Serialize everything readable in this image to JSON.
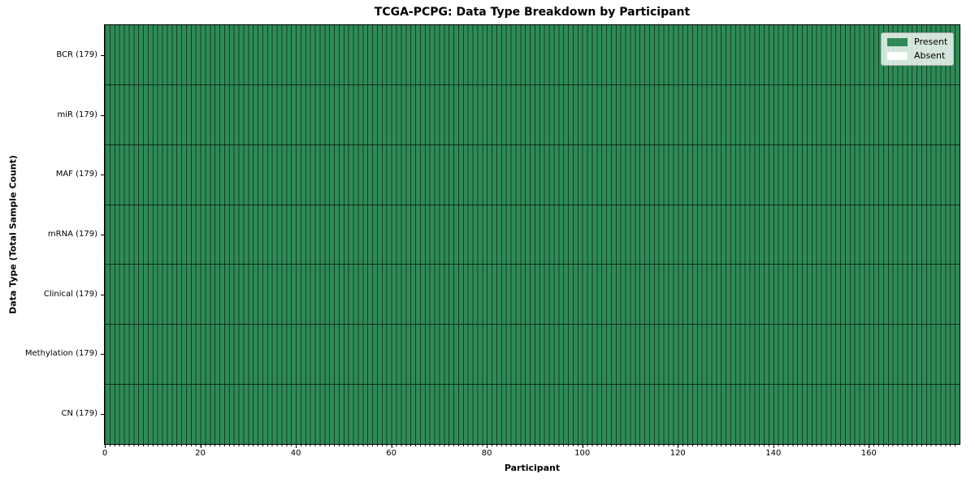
{
  "chart_data": {
    "type": "heatmap",
    "title": "TCGA-PCPG: Data Type Breakdown by Participant",
    "xlabel": "Participant",
    "ylabel": "Data Type (Total Sample Count)",
    "n_participants": 179,
    "xlim": [
      0,
      179
    ],
    "x_ticks": [
      0,
      20,
      40,
      60,
      80,
      100,
      120,
      140,
      160
    ],
    "rows": [
      {
        "label": "BCR (179)",
        "data_type": "BCR",
        "total_samples": 179,
        "present": 179,
        "absent": 0
      },
      {
        "label": "miR (179)",
        "data_type": "miR",
        "total_samples": 179,
        "present": 179,
        "absent": 0
      },
      {
        "label": "MAF (179)",
        "data_type": "MAF",
        "total_samples": 179,
        "present": 179,
        "absent": 0
      },
      {
        "label": "mRNA (179)",
        "data_type": "mRNA",
        "total_samples": 179,
        "present": 179,
        "absent": 0
      },
      {
        "label": "Clinical (179)",
        "data_type": "Clinical",
        "total_samples": 179,
        "present": 179,
        "absent": 0
      },
      {
        "label": "Methylation (179)",
        "data_type": "Methylation",
        "total_samples": 179,
        "present": 179,
        "absent": 0
      },
      {
        "label": "CN (179)",
        "data_type": "CN",
        "total_samples": 179,
        "present": 179,
        "absent": 0
      }
    ],
    "all_cells_present": true,
    "legend": {
      "position": "upper right",
      "entries": [
        {
          "label": "Present",
          "color": "#2e8b57"
        },
        {
          "label": "Absent",
          "color": "#ffffff"
        }
      ]
    },
    "colors": {
      "present": "#2e8b57",
      "absent": "#ffffff",
      "cell_edge": "rgba(0,0,0,0.55)",
      "plot_border": "#000000"
    },
    "grid": "per-cell edges"
  }
}
